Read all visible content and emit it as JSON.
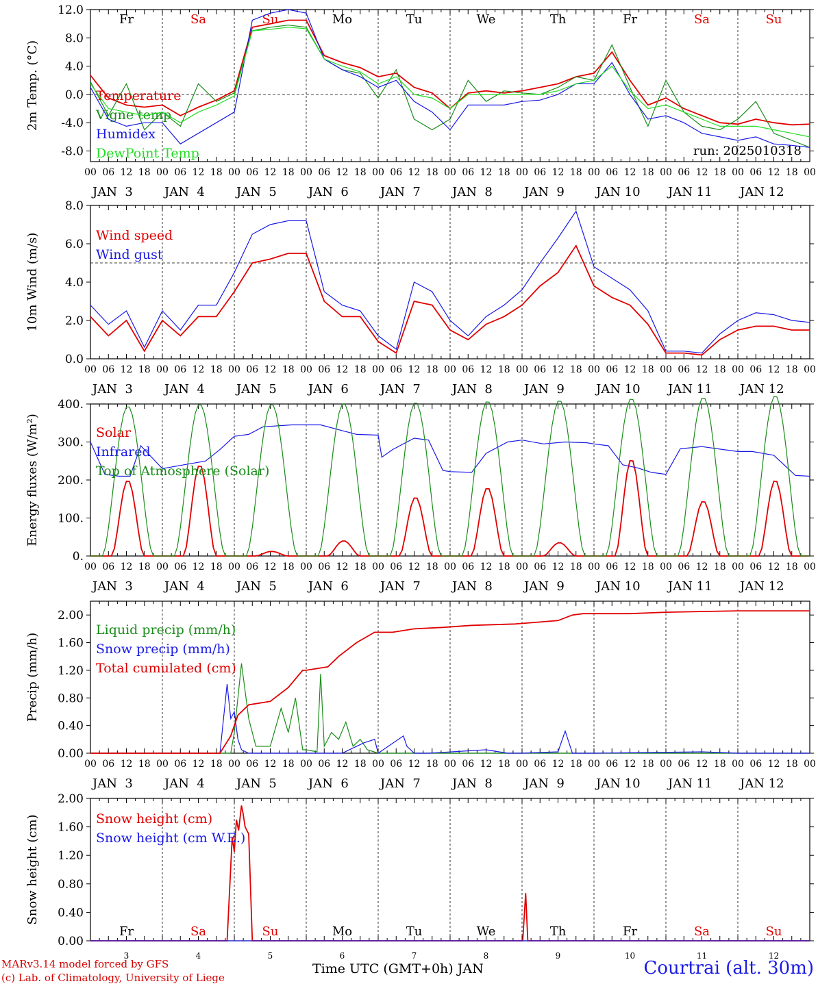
{
  "colors": {
    "red": "#e00000",
    "green": "#1a8c1a",
    "blue": "#1a1ae6",
    "lightgreen": "#22dd22",
    "black": "#000000"
  },
  "footer": {
    "model_line": "MARv3.14 model forced by GFS",
    "credit_line": "(c) Lab. of Climatology, University of Liege",
    "xlabel": "Time UTC (GMT+0h) JAN",
    "station": "Courtrai (alt. 30m)"
  },
  "x_axis": {
    "hour_ticks": [
      "00",
      "06",
      "12",
      "18"
    ],
    "final_tick": "00",
    "day_labels": [
      "JAN  3",
      "JAN  4",
      "JAN  5",
      "JAN  6",
      "JAN  7",
      "JAN  8",
      "JAN  9",
      "JAN 10",
      "JAN 11",
      "JAN 12"
    ],
    "weekdays": [
      {
        "label": "Fr",
        "weekend": false
      },
      {
        "label": "Sa",
        "weekend": true
      },
      {
        "label": "Su",
        "weekend": true
      },
      {
        "label": "Mo",
        "weekend": false
      },
      {
        "label": "Tu",
        "weekend": false
      },
      {
        "label": "We",
        "weekend": false
      },
      {
        "label": "Th",
        "weekend": false
      },
      {
        "label": "Fr",
        "weekend": false
      },
      {
        "label": "Sa",
        "weekend": true
      },
      {
        "label": "Su",
        "weekend": true
      }
    ],
    "snow_day_numbers": [
      "3",
      "4",
      "5",
      "6",
      "7",
      "8",
      "9",
      "10",
      "11",
      "12"
    ]
  },
  "chart_data": [
    {
      "type": "line",
      "ylabel": "2m Temp. (°C)",
      "ylim": [
        -9.5,
        12.0
      ],
      "yticks": [
        "12.0",
        "8.0",
        "4.0",
        "0.0",
        "-4.0",
        "-8.0"
      ],
      "ytick_values": [
        12,
        8,
        4,
        0,
        -4,
        -8
      ],
      "reference_line": 0,
      "annotation": "run: 2025010318",
      "x_unit": "days since JAN 3 00 UTC",
      "series": [
        {
          "name": "Temperature",
          "color": "red",
          "x": [
            0,
            0.25,
            0.5,
            0.75,
            1.0,
            1.25,
            1.5,
            1.75,
            2.0,
            2.25,
            2.5,
            2.75,
            3.0,
            3.25,
            3.5,
            3.75,
            4.0,
            4.25,
            4.5,
            4.75,
            5.0,
            5.25,
            5.5,
            5.75,
            6.0,
            6.25,
            6.5,
            6.75,
            7.0,
            7.25,
            7.5,
            7.75,
            8.0,
            8.25,
            8.5,
            8.75,
            9.0,
            9.25,
            9.5,
            9.75,
            10.0
          ],
          "y": [
            2.7,
            -0.5,
            -1.5,
            -1.8,
            -1.5,
            -3.0,
            -1.8,
            -0.8,
            0.5,
            9.5,
            10.0,
            10.5,
            10.5,
            5.5,
            4.5,
            3.8,
            2.5,
            3.0,
            1.0,
            0.2,
            -2.0,
            0.2,
            0.5,
            0.2,
            0.5,
            1.0,
            1.5,
            2.5,
            3.0,
            6.0,
            2.0,
            -1.5,
            -0.5,
            -2.0,
            -3.0,
            -4.0,
            -4.2,
            -3.5,
            -4.0,
            -4.3,
            -4.2
          ]
        },
        {
          "name": "Vigne temp",
          "color": "green",
          "x": [
            0,
            0.25,
            0.5,
            0.75,
            1.0,
            1.25,
            1.5,
            1.75,
            2.0,
            2.25,
            2.5,
            2.75,
            3.0,
            3.25,
            3.5,
            3.75,
            4.0,
            4.25,
            4.5,
            4.75,
            5.0,
            5.25,
            5.5,
            5.75,
            6.0,
            6.25,
            6.5,
            6.75,
            7.0,
            7.25,
            7.5,
            7.75,
            8.0,
            8.25,
            8.5,
            8.75,
            9.0,
            9.25,
            9.5,
            9.75,
            10.0
          ],
          "y": [
            1.8,
            -3.0,
            1.5,
            -5.0,
            -2.5,
            -4.5,
            1.5,
            -1.0,
            0.2,
            9.0,
            9.5,
            9.8,
            9.5,
            5.0,
            3.5,
            3.0,
            -0.5,
            3.5,
            -3.5,
            -5.0,
            -3.5,
            2.0,
            -1.0,
            0.5,
            0.2,
            0.0,
            1.0,
            2.5,
            2.0,
            7.0,
            1.0,
            -4.5,
            2.0,
            -2.5,
            -4.5,
            -5.0,
            -3.5,
            -1.0,
            -5.5,
            -6.5,
            -7.5
          ]
        },
        {
          "name": "Humidex",
          "color": "blue",
          "x": [
            0,
            0.25,
            0.5,
            0.75,
            1.0,
            1.25,
            1.5,
            1.75,
            2.0,
            2.25,
            2.5,
            2.75,
            3.0,
            3.25,
            3.5,
            3.75,
            4.0,
            4.25,
            4.5,
            4.75,
            5.0,
            5.25,
            5.5,
            5.75,
            6.0,
            6.25,
            6.5,
            6.75,
            7.0,
            7.25,
            7.5,
            7.75,
            8.0,
            8.25,
            8.5,
            8.75,
            9.0,
            9.25,
            9.5,
            9.75,
            10.0
          ],
          "y": [
            1.0,
            -3.5,
            -4.5,
            -4.0,
            -4.0,
            -7.0,
            -5.5,
            -4.0,
            -2.5,
            10.5,
            11.5,
            12.0,
            11.5,
            5.0,
            3.5,
            2.5,
            1.0,
            2.0,
            -1.0,
            -2.5,
            -5.0,
            -1.5,
            -1.5,
            -1.5,
            -1.0,
            -0.8,
            0.0,
            1.5,
            1.5,
            4.5,
            0.0,
            -3.5,
            -3.0,
            -4.0,
            -5.5,
            -6.0,
            -6.5,
            -6.0,
            -7.0,
            -7.2,
            -7.5
          ]
        },
        {
          "name": "DewPoint Temp",
          "color": "lightgreen",
          "x": [
            0,
            0.25,
            0.5,
            0.75,
            1.0,
            1.25,
            1.5,
            1.75,
            2.0,
            2.25,
            2.5,
            2.75,
            3.0,
            3.25,
            3.5,
            3.75,
            4.0,
            4.25,
            4.5,
            4.75,
            5.0,
            5.25,
            5.5,
            5.75,
            6.0,
            6.25,
            6.5,
            6.75,
            7.0,
            7.25,
            7.5,
            7.75,
            8.0,
            8.25,
            8.5,
            8.75,
            9.0,
            9.25,
            9.5,
            9.75,
            10.0
          ],
          "y": [
            1.5,
            -2.0,
            -2.5,
            -3.0,
            -2.5,
            -4.0,
            -2.5,
            -1.5,
            -0.2,
            9.0,
            9.2,
            9.5,
            9.3,
            5.0,
            4.0,
            3.2,
            1.5,
            2.5,
            0.0,
            -0.5,
            -2.0,
            0.0,
            0.0,
            0.0,
            0.0,
            0.0,
            0.5,
            1.5,
            2.0,
            4.0,
            0.5,
            -2.0,
            -1.5,
            -2.5,
            -3.5,
            -4.5,
            -4.5,
            -4.5,
            -5.0,
            -5.5,
            -6.0
          ]
        }
      ]
    },
    {
      "type": "line",
      "ylabel": "10m Wind (m/s)",
      "ylim": [
        0,
        8.0
      ],
      "yticks": [
        "8.0",
        "6.0",
        "4.0",
        "2.0",
        "0.0"
      ],
      "ytick_values": [
        8,
        6,
        4,
        2,
        0
      ],
      "reference_line": 5,
      "series": [
        {
          "name": "Wind speed",
          "color": "red",
          "x": [
            0,
            0.25,
            0.5,
            0.75,
            1.0,
            1.25,
            1.5,
            1.75,
            2.0,
            2.25,
            2.5,
            2.75,
            3.0,
            3.25,
            3.5,
            3.75,
            4.0,
            4.25,
            4.5,
            4.75,
            5.0,
            5.25,
            5.5,
            5.75,
            6.0,
            6.25,
            6.5,
            6.75,
            7.0,
            7.25,
            7.5,
            7.75,
            8.0,
            8.25,
            8.5,
            8.75,
            9.0,
            9.25,
            9.5,
            9.75,
            10.0
          ],
          "y": [
            2.2,
            1.2,
            2.0,
            0.4,
            2.0,
            1.2,
            2.2,
            2.2,
            3.5,
            5.0,
            5.2,
            5.5,
            5.5,
            3.0,
            2.2,
            2.2,
            0.9,
            0.3,
            3.0,
            2.8,
            1.5,
            1.0,
            1.8,
            2.2,
            2.8,
            3.8,
            4.5,
            5.9,
            3.8,
            3.2,
            2.8,
            1.8,
            0.3,
            0.3,
            0.2,
            1.0,
            1.5,
            1.7,
            1.7,
            1.5,
            1.5
          ]
        },
        {
          "name": "Wind gust",
          "color": "blue",
          "x": [
            0,
            0.25,
            0.5,
            0.75,
            1.0,
            1.25,
            1.5,
            1.75,
            2.0,
            2.25,
            2.5,
            2.75,
            3.0,
            3.25,
            3.5,
            3.75,
            4.0,
            4.25,
            4.5,
            4.75,
            5.0,
            5.25,
            5.5,
            5.75,
            6.0,
            6.25,
            6.5,
            6.75,
            7.0,
            7.25,
            7.5,
            7.75,
            8.0,
            8.25,
            8.5,
            8.75,
            9.0,
            9.25,
            9.5,
            9.75,
            10.0
          ],
          "y": [
            2.8,
            1.8,
            2.5,
            0.6,
            2.5,
            1.5,
            2.8,
            2.8,
            4.5,
            6.5,
            7.0,
            7.2,
            7.2,
            3.5,
            2.8,
            2.5,
            1.2,
            0.5,
            4.0,
            3.5,
            2.0,
            1.2,
            2.2,
            2.8,
            3.6,
            5.0,
            6.3,
            7.7,
            4.8,
            4.2,
            3.6,
            2.5,
            0.4,
            0.4,
            0.3,
            1.3,
            2.0,
            2.4,
            2.3,
            2.0,
            1.9
          ]
        }
      ]
    },
    {
      "type": "line",
      "ylabel": "Energy fluxes (W/m²)",
      "ylim": [
        0,
        400
      ],
      "yticks": [
        "400.",
        "300.",
        "200.",
        "100.",
        "0."
      ],
      "ytick_values": [
        400,
        300,
        200,
        100,
        0
      ],
      "series": [
        {
          "name": "Solar",
          "color": "red",
          "peaks": [
            200,
            240,
            12,
            40,
            155,
            180,
            35,
            255,
            145,
            200
          ],
          "peak_width_days": 0.22
        },
        {
          "name": "Infrared",
          "color": "blue",
          "x": [
            0,
            0.2,
            0.4,
            0.55,
            0.7,
            1.0,
            1.3,
            1.6,
            1.8,
            2.0,
            2.2,
            2.4,
            2.8,
            3.2,
            3.5,
            3.7,
            4.0,
            4.05,
            4.2,
            4.5,
            4.7,
            4.9,
            5.0,
            5.3,
            5.5,
            5.8,
            6.0,
            6.3,
            6.6,
            6.9,
            7.0,
            7.2,
            7.4,
            7.6,
            7.8,
            8.0,
            8.2,
            8.5,
            8.8,
            9.0,
            9.2,
            9.5,
            9.8,
            10.0
          ],
          "y": [
            300,
            215,
            210,
            210,
            290,
            230,
            240,
            250,
            280,
            315,
            320,
            340,
            345,
            345,
            330,
            320,
            318,
            260,
            280,
            310,
            305,
            225,
            222,
            220,
            270,
            300,
            305,
            295,
            300,
            298,
            295,
            290,
            240,
            232,
            220,
            215,
            282,
            288,
            280,
            275,
            275,
            265,
            212,
            210
          ]
        },
        {
          "name": "Top of Atmosphere (Solar)",
          "color": "green",
          "peaks": [
            395,
            400,
            400,
            402,
            405,
            408,
            410,
            415,
            418,
            422
          ],
          "peak_width_days": 0.35
        }
      ]
    },
    {
      "type": "line",
      "ylabel": "Precip (mm/h)",
      "ylim": [
        0,
        2.2
      ],
      "yticks": [
        "2.00",
        "1.60",
        "1.20",
        "0.80",
        "0.40",
        "0.00"
      ],
      "ytick_values": [
        2.0,
        1.6,
        1.2,
        0.8,
        0.4,
        0.0
      ],
      "series": [
        {
          "name": "Liquid precip (mm/h)",
          "color": "green",
          "x": [
            0,
            1.8,
            1.95,
            2.0,
            2.1,
            2.2,
            2.3,
            2.5,
            2.65,
            2.75,
            2.85,
            2.95,
            3.0,
            3.15,
            3.2,
            3.25,
            3.35,
            3.45,
            3.55,
            3.65,
            3.75,
            3.85,
            4.0,
            4.5,
            5.0,
            10.0
          ],
          "y": [
            0,
            0,
            0,
            0.3,
            1.3,
            0.5,
            0.1,
            0.1,
            0.65,
            0.3,
            0.8,
            0.05,
            0.05,
            0.02,
            1.15,
            0.1,
            0.3,
            0.2,
            0.45,
            0.1,
            0.2,
            0.05,
            0.0,
            0.0,
            0.0,
            0.0
          ]
        },
        {
          "name": "Snow precip (mm/h)",
          "color": "blue",
          "x": [
            0,
            1.8,
            1.9,
            1.95,
            2.0,
            2.05,
            2.1,
            2.2,
            3.5,
            3.8,
            3.95,
            4.0,
            4.35,
            4.4,
            4.5,
            4.7,
            5.5,
            5.8,
            6.0,
            6.5,
            6.6,
            6.7,
            7.0,
            8.5,
            9.0,
            10.0
          ],
          "y": [
            0,
            0,
            1.0,
            0.5,
            0.6,
            0.2,
            0.05,
            0.0,
            0.0,
            0.15,
            0.2,
            0.0,
            0.25,
            0.1,
            0.0,
            0.0,
            0.05,
            0.0,
            0.0,
            0.02,
            0.32,
            0.0,
            0.0,
            0.02,
            0.0,
            0.0
          ]
        },
        {
          "name": "Total cumulated (cm)",
          "color": "red",
          "x": [
            0,
            1.8,
            1.95,
            2.05,
            2.2,
            2.5,
            2.75,
            2.95,
            3.0,
            3.3,
            3.45,
            3.7,
            3.95,
            4.2,
            4.5,
            4.9,
            5.3,
            5.9,
            6.5,
            6.7,
            6.85,
            7.5,
            8.0,
            9.0,
            10.0
          ],
          "y": [
            0,
            0,
            0.25,
            0.55,
            0.7,
            0.75,
            0.95,
            1.2,
            1.2,
            1.25,
            1.4,
            1.6,
            1.75,
            1.75,
            1.8,
            1.82,
            1.85,
            1.87,
            1.92,
            2.0,
            2.02,
            2.02,
            2.04,
            2.06,
            2.06
          ]
        }
      ]
    },
    {
      "type": "line",
      "ylabel": "Snow height (cm)",
      "ylim": [
        0,
        2.0
      ],
      "yticks": [
        "2.00",
        "1.60",
        "1.20",
        "0.80",
        "0.40",
        "0.00"
      ],
      "ytick_values": [
        2.0,
        1.6,
        1.2,
        0.8,
        0.4,
        0.0
      ],
      "series": [
        {
          "name": "Snow height (cm)",
          "color": "red",
          "x": [
            0,
            1.9,
            1.97,
            2.0,
            2.03,
            2.06,
            2.1,
            2.12,
            2.15,
            2.2,
            2.25,
            6.0,
            6.01,
            6.05,
            6.08,
            10.0
          ],
          "y": [
            0,
            0,
            1.45,
            1.25,
            1.7,
            1.55,
            1.9,
            1.8,
            1.6,
            1.5,
            0.0,
            0.0,
            0.0,
            0.67,
            0.0,
            0.0
          ]
        },
        {
          "name": "Snow height (cm W.E.)",
          "color": "blue",
          "x": [
            0,
            10.0
          ],
          "y": [
            0,
            0
          ]
        }
      ]
    }
  ]
}
